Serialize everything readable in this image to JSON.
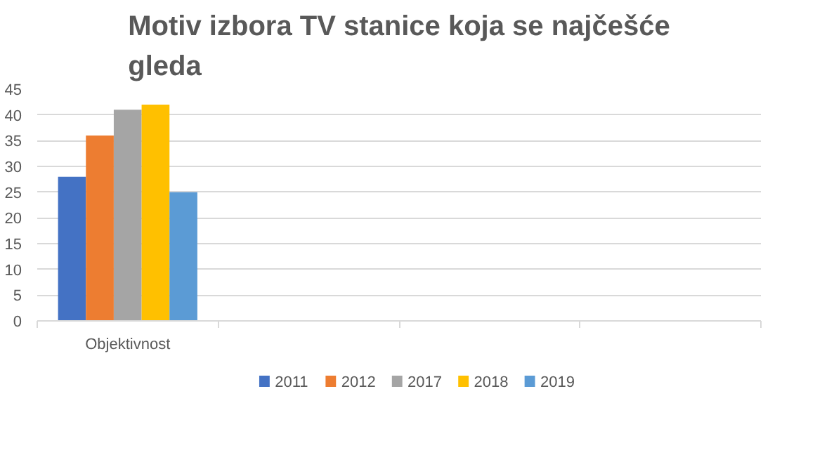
{
  "chart_data": {
    "type": "bar",
    "title": "Motiv izbora TV stanice koja se najčešće\ngleda",
    "categories": [
      "Objektivnost",
      null,
      null,
      null
    ],
    "series": [
      {
        "name": "2011",
        "color": "#4472c4",
        "values": [
          28,
          null,
          null,
          null
        ]
      },
      {
        "name": "2012",
        "color": "#ed7d31",
        "values": [
          36,
          null,
          null,
          null
        ]
      },
      {
        "name": "2017",
        "color": "#a5a5a5",
        "values": [
          41,
          null,
          null,
          null
        ]
      },
      {
        "name": "2018",
        "color": "#ffc000",
        "values": [
          42,
          null,
          null,
          null
        ]
      },
      {
        "name": "2019",
        "color": "#5b9bd5",
        "values": [
          25,
          null,
          null,
          null
        ]
      }
    ],
    "ylim": [
      0,
      45
    ],
    "yticks": [
      0,
      5,
      10,
      15,
      20,
      25,
      30,
      35,
      40,
      45
    ],
    "grid": "y",
    "legend": "bottom"
  }
}
